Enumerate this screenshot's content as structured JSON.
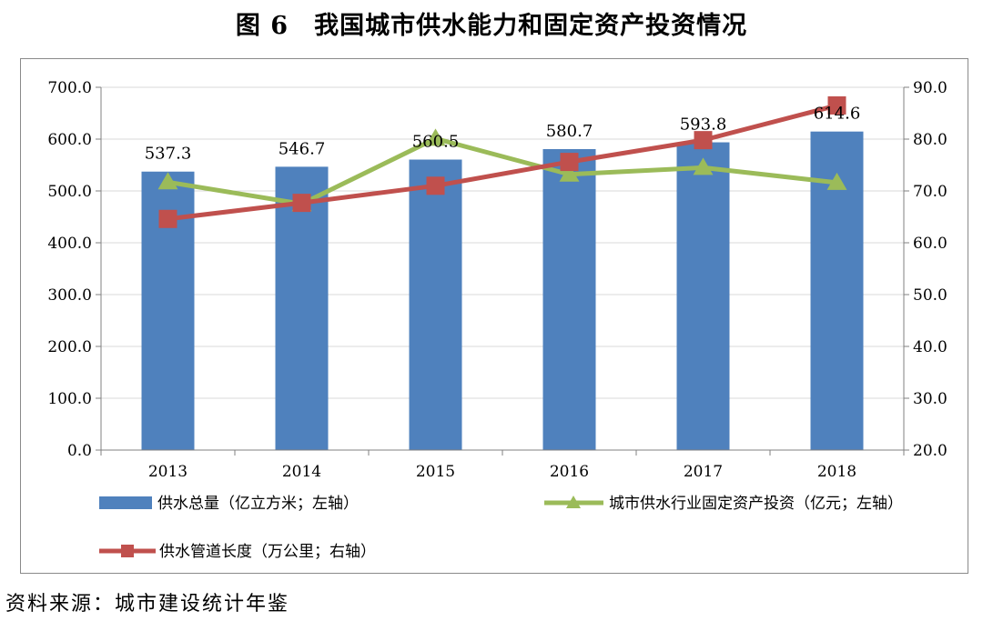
{
  "title": "图 6　我国城市供水能力和固定资产投资情况",
  "source": "资料来源：城市建设统计年鉴",
  "chart_data": {
    "type": "bar+line",
    "categories": [
      "2013",
      "2014",
      "2015",
      "2016",
      "2017",
      "2018"
    ],
    "left_axis": {
      "min": 0,
      "max": 700,
      "step": 100,
      "ticks": [
        "0.0",
        "100.0",
        "200.0",
        "300.0",
        "400.0",
        "500.0",
        "600.0",
        "700.0"
      ]
    },
    "right_axis": {
      "min": 20,
      "max": 90,
      "step": 10,
      "ticks": [
        "20.0",
        "30.0",
        "40.0",
        "50.0",
        "60.0",
        "70.0",
        "80.0",
        "90.0"
      ]
    },
    "series": [
      {
        "name": "供水总量（亿立方米；左轴）",
        "type": "bar",
        "axis": "left",
        "color": "#4f81bd",
        "values": [
          537.3,
          546.7,
          560.5,
          580.7,
          593.8,
          614.6
        ],
        "labels": [
          "537.3",
          "546.7",
          "560.5",
          "580.7",
          "593.8",
          "614.6"
        ]
      },
      {
        "name": "城市供水行业固定资产投资（亿元；左轴）",
        "type": "line",
        "marker": "triangle",
        "axis": "left",
        "color": "#9bbb59",
        "values": [
          517,
          475,
          601,
          532,
          545,
          516
        ]
      },
      {
        "name": "供水管道长度（万公里；右轴）",
        "type": "line",
        "marker": "square",
        "axis": "right",
        "color": "#c0504d",
        "values": [
          64.6,
          67.7,
          71.0,
          75.6,
          79.8,
          86.5
        ]
      }
    ],
    "grid": true,
    "legend": "bottom"
  }
}
